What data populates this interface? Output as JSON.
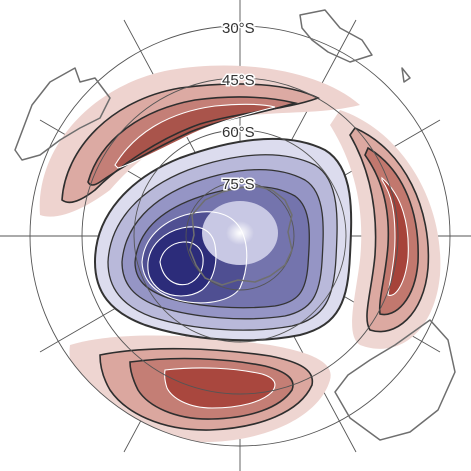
{
  "map": {
    "projection": "south-polar-stereographic",
    "latitude_labels": [
      "30°S",
      "45°S",
      "60°S",
      "75°S"
    ],
    "colors": {
      "positive_anomaly": "#b0453c",
      "negative_anomaly": "#2c2c7a",
      "contour_line": "#3a3a3a",
      "coastline": "#707070",
      "graticule": "#555555"
    },
    "features": [
      {
        "name": "negative-anomaly-center",
        "sign": "negative",
        "region": "polar cap"
      },
      {
        "name": "positive-anomaly-lobe",
        "sign": "positive",
        "region": "upper-left"
      },
      {
        "name": "positive-anomaly-lobe",
        "sign": "positive",
        "region": "right"
      },
      {
        "name": "positive-anomaly-lobe",
        "sign": "positive",
        "region": "bottom"
      }
    ]
  }
}
